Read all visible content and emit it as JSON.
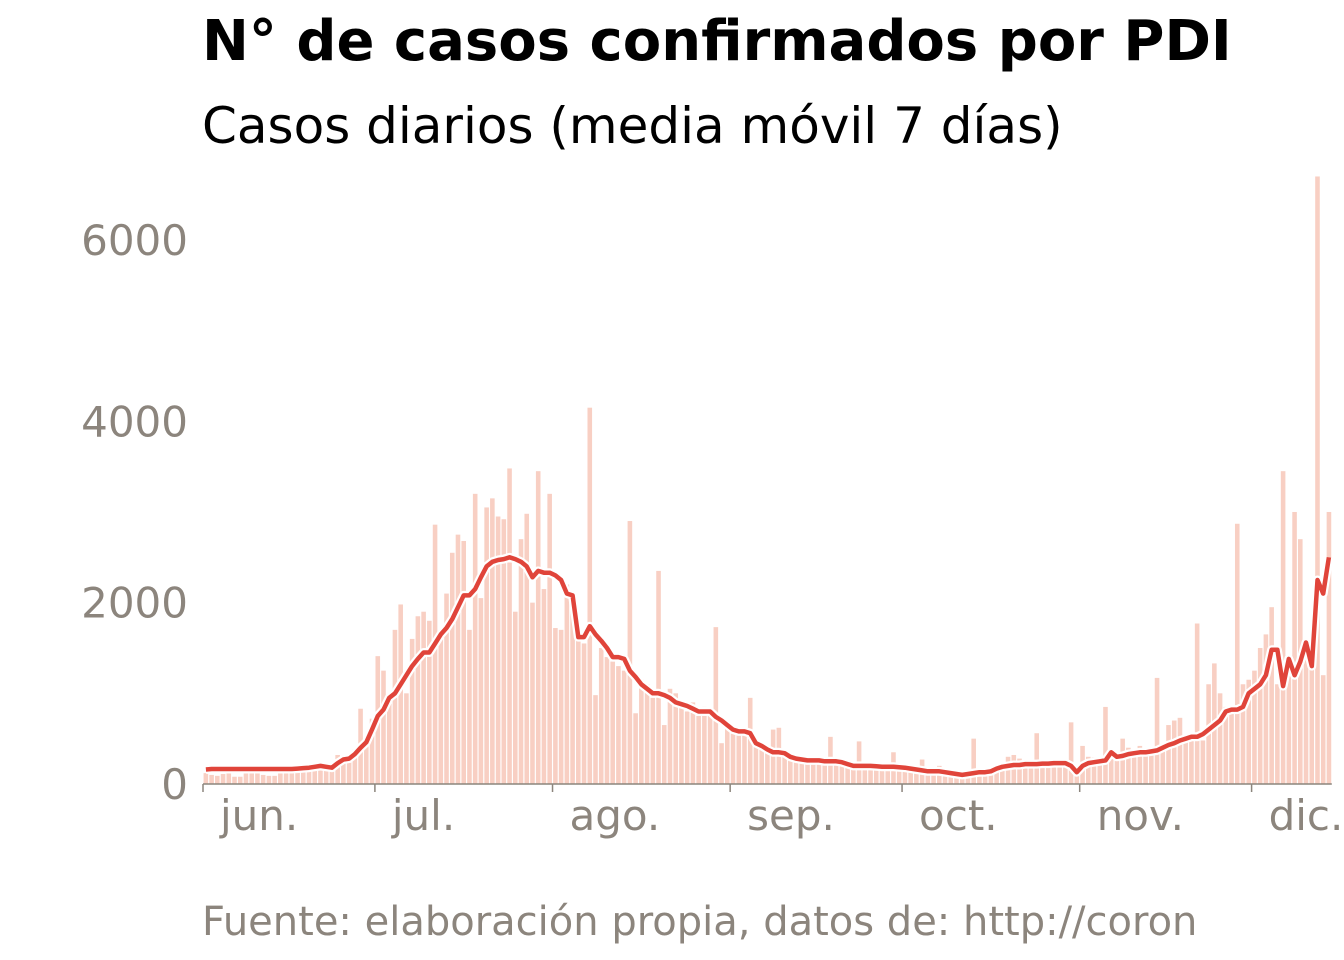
{
  "chart_data": {
    "type": "bar",
    "title": "N° de casos confirmados por PDI",
    "subtitle": "Casos diarios (media móvil 7 días)",
    "source": "Fuente: elaboración propia, datos de: http://coron",
    "categories": [
      "jun.",
      null,
      null,
      null,
      null,
      null,
      null,
      null,
      null,
      null,
      null,
      null,
      null,
      null,
      null,
      null,
      null,
      null,
      null,
      null,
      null,
      null,
      null,
      null,
      null,
      null,
      null,
      null,
      null,
      null,
      "jul.",
      null,
      null,
      null,
      null,
      null,
      null,
      null,
      null,
      null,
      null,
      null,
      null,
      null,
      null,
      null,
      null,
      null,
      null,
      null,
      null,
      null,
      null,
      null,
      null,
      null,
      null,
      null,
      null,
      null,
      null,
      "ago.",
      null,
      null,
      null,
      null,
      null,
      null,
      null,
      null,
      null,
      null,
      null,
      null,
      null,
      null,
      null,
      null,
      null,
      null,
      null,
      null,
      null,
      null,
      null,
      null,
      null,
      null,
      null,
      null,
      null,
      null,
      "sep.",
      null,
      null,
      null,
      null,
      null,
      null,
      null,
      null,
      null,
      null,
      null,
      null,
      null,
      null,
      null,
      null,
      null,
      null,
      null,
      null,
      null,
      null,
      null,
      null,
      null,
      null,
      null,
      null,
      null,
      "oct.",
      null,
      null,
      null,
      null,
      null,
      null,
      null,
      null,
      null,
      null,
      null,
      null,
      null,
      null,
      null,
      null,
      null,
      null,
      null,
      null,
      null,
      null,
      null,
      null,
      null,
      null,
      null,
      null,
      null,
      null,
      "nov.",
      null,
      null,
      null,
      null,
      null,
      null,
      null,
      null,
      null,
      null,
      null,
      null,
      null,
      null,
      null,
      null,
      null,
      null,
      null,
      null,
      null,
      null,
      null,
      null,
      null,
      null,
      null,
      null,
      null,
      "dic.",
      null,
      null,
      null,
      null,
      null,
      null,
      null,
      null,
      null,
      null,
      null,
      null,
      null
    ],
    "series": [
      {
        "type": "bar",
        "color": "#f8cfc3",
        "values": [
          120,
          100,
          90,
          110,
          130,
          80,
          80,
          150,
          120,
          120,
          100,
          90,
          90,
          120,
          140,
          150,
          160,
          140,
          210,
          220,
          230,
          160,
          140,
          320,
          290,
          300,
          380,
          830,
          460,
          720,
          1410,
          1250,
          980,
          1700,
          1980,
          1000,
          1600,
          1850,
          1900,
          1800,
          2860,
          1600,
          2100,
          2550,
          2750,
          2680,
          1700,
          3200,
          2050,
          3050,
          3150,
          2950,
          2920,
          3480,
          1900,
          2700,
          2980,
          2000,
          3450,
          2150,
          3200,
          1720,
          1700,
          2200,
          2050,
          1650,
          1550,
          4150,
          980,
          1500,
          1400,
          1350,
          1300,
          1250,
          2900,
          780,
          1150,
          1100,
          950,
          2350,
          650,
          1050,
          1000,
          850,
          800,
          900,
          750,
          850,
          800,
          1730,
          450,
          650,
          600,
          560,
          600,
          950,
          480,
          420,
          350,
          600,
          620,
          330,
          280,
          280,
          300,
          250,
          280,
          250,
          260,
          520,
          250,
          220,
          200,
          200,
          470,
          200,
          180,
          170,
          190,
          200,
          350,
          180,
          160,
          150,
          140,
          270,
          120,
          130,
          200,
          150,
          100,
          110,
          100,
          140,
          500,
          130,
          140,
          150,
          180,
          200,
          300,
          320,
          280,
          250,
          240,
          560,
          200,
          220,
          230,
          240,
          240,
          680,
          150,
          420,
          300,
          290,
          280,
          850,
          350,
          310,
          500,
          400,
          380,
          420,
          370,
          400,
          1170,
          380,
          650,
          700,
          730,
          500,
          550,
          1770,
          480,
          1100,
          1330,
          1000,
          850,
          800,
          2870,
          1100,
          1150,
          1250,
          1500,
          1650,
          1950,
          1100,
          3450,
          1300,
          3000,
          2700,
          1550,
          1300,
          6700,
          1200,
          3000
        ]
      },
      {
        "type": "line",
        "color": "#e0443a",
        "values": [
          160,
          165,
          165,
          165,
          165,
          165,
          165,
          165,
          165,
          165,
          165,
          165,
          165,
          165,
          165,
          165,
          170,
          175,
          180,
          190,
          200,
          190,
          180,
          230,
          270,
          280,
          330,
          400,
          460,
          600,
          750,
          820,
          950,
          1000,
          1100,
          1200,
          1300,
          1380,
          1450,
          1450,
          1550,
          1650,
          1720,
          1820,
          1950,
          2080,
          2080,
          2150,
          2280,
          2400,
          2450,
          2470,
          2480,
          2500,
          2480,
          2450,
          2400,
          2280,
          2350,
          2330,
          2330,
          2300,
          2250,
          2100,
          2080,
          1620,
          1620,
          1740,
          1650,
          1580,
          1500,
          1400,
          1400,
          1380,
          1250,
          1180,
          1100,
          1050,
          1000,
          1000,
          980,
          950,
          900,
          880,
          860,
          830,
          800,
          800,
          800,
          740,
          700,
          650,
          600,
          580,
          580,
          560,
          450,
          420,
          380,
          350,
          350,
          340,
          300,
          280,
          270,
          260,
          260,
          260,
          250,
          250,
          250,
          240,
          220,
          200,
          200,
          200,
          200,
          195,
          190,
          190,
          190,
          185,
          180,
          170,
          160,
          150,
          140,
          140,
          140,
          130,
          120,
          110,
          100,
          110,
          120,
          130,
          130,
          140,
          170,
          190,
          200,
          210,
          210,
          220,
          220,
          220,
          225,
          225,
          230,
          230,
          230,
          200,
          130,
          200,
          230,
          240,
          250,
          260,
          350,
          300,
          310,
          330,
          340,
          350,
          350,
          360,
          370,
          400,
          430,
          450,
          480,
          500,
          520,
          520,
          550,
          600,
          650,
          700,
          800,
          820,
          820,
          850,
          1000,
          1050,
          1100,
          1200,
          1480,
          1480,
          1080,
          1380,
          1200,
          1350,
          1560,
          1300,
          2250,
          2100,
          2500
        ]
      }
    ],
    "ylim": [
      0,
      6800
    ],
    "yticks": [
      0,
      2000,
      4000,
      6000
    ]
  }
}
